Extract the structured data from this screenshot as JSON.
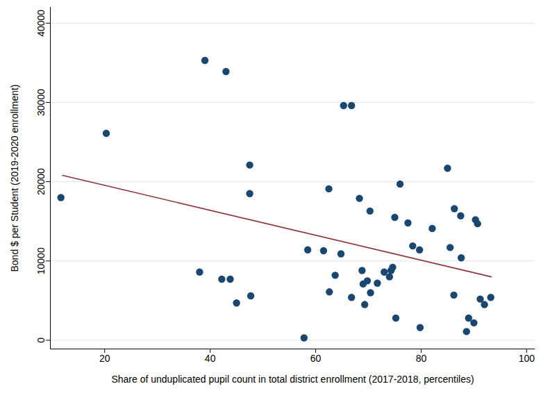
{
  "chart_data": {
    "type": "scatter",
    "x_label": "Share of unduplicated pupil count in total district enrollment (2017-2018, percentiles)",
    "y_label": "Bond $ per Student (2019-2020 enrollment)",
    "xlim": [
      9.7,
      101.6
    ],
    "xticks": [
      20,
      40,
      60,
      80,
      100
    ],
    "ylim": [
      -1100,
      42000
    ],
    "yticks": [
      0,
      10000,
      20000,
      30000,
      40000
    ],
    "grid": "y",
    "series": [
      {
        "type": "scatter",
        "color": "#1a476f",
        "marker": "circle",
        "x": [
          11.7,
          20.3,
          38,
          39,
          42.2,
          43,
          43.8,
          45,
          47.5,
          47.5,
          47.7,
          57.8,
          58.5,
          61.5,
          62.5,
          62.6,
          63.7,
          64.8,
          65.3,
          66.8,
          66.8,
          68.3,
          68.8,
          69,
          69.3,
          69.8,
          70.3,
          70.4,
          71.7,
          73,
          74,
          74.3,
          74.6,
          75,
          75.2,
          76,
          77.5,
          78.4,
          79.7,
          79.8,
          82.1,
          85,
          85.5,
          86.2,
          86.3,
          87.5,
          87.6,
          88.6,
          89,
          90,
          90.3,
          90.7,
          91.2,
          92,
          93.2
        ],
        "values": [
          18000,
          26100,
          8600,
          35300,
          7700,
          33900,
          7700,
          4700,
          22100,
          18500,
          5600,
          300,
          11400,
          11300,
          19100,
          6100,
          8200,
          10900,
          29600,
          29600,
          5400,
          17900,
          8800,
          7100,
          4500,
          7500,
          16300,
          6000,
          7200,
          8600,
          8000,
          8800,
          9200,
          15500,
          2800,
          19700,
          14800,
          11900,
          11400,
          1600,
          14100,
          21700,
          11700,
          5700,
          16600,
          15700,
          10400,
          1100,
          2800,
          2200,
          15200,
          14700,
          5200,
          4500,
          5400
        ]
      },
      {
        "type": "line",
        "color": "#90353b",
        "line_style": "solid",
        "x": [
          12,
          93.3
        ],
        "values": [
          20800,
          8000
        ]
      }
    ]
  }
}
